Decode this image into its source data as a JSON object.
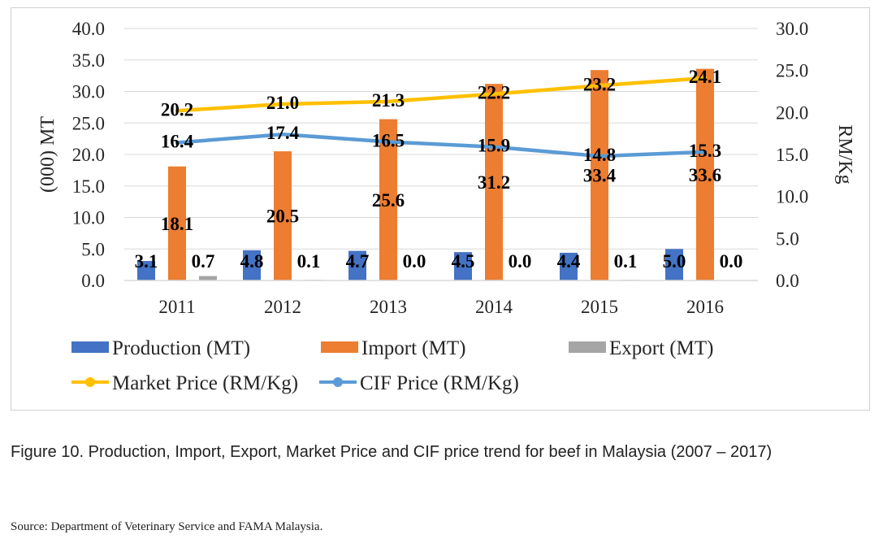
{
  "chart_data": {
    "type": "bar+line",
    "categories": [
      "2011",
      "2012",
      "2013",
      "2014",
      "2015",
      "2016"
    ],
    "bar_series": [
      {
        "name": "Production (MT)",
        "color": "#4472C4",
        "values": [
          3.1,
          4.8,
          4.7,
          4.5,
          4.4,
          5.0
        ]
      },
      {
        "name": "Import (MT)",
        "color": "#ED7D31",
        "values": [
          18.1,
          20.5,
          25.6,
          31.2,
          33.4,
          33.6
        ]
      },
      {
        "name": "Export (MT)",
        "color": "#A5A5A5",
        "values": [
          0.7,
          0.1,
          0.0,
          0.0,
          0.1,
          0.0
        ]
      }
    ],
    "line_series": [
      {
        "name": "Market Price (RM/Kg)",
        "color": "#FFC000",
        "axis": "right",
        "values": [
          20.2,
          21.0,
          21.3,
          22.2,
          23.2,
          24.1
        ]
      },
      {
        "name": "CIF Price (RM/Kg)",
        "color": "#5B9BD5",
        "axis": "right",
        "values": [
          16.4,
          17.4,
          16.5,
          15.9,
          14.8,
          15.3
        ]
      }
    ],
    "ylabel_left": "(000) MT",
    "ylabel_right": "RM/Kg",
    "ylim_left": [
      0,
      40
    ],
    "ylim_right": [
      0,
      30
    ],
    "yticks_left": [
      "0.0",
      "5.0",
      "10.0",
      "15.0",
      "20.0",
      "25.0",
      "30.0",
      "35.0",
      "40.0"
    ],
    "yticks_right": [
      "0.0",
      "5.0",
      "10.0",
      "15.0",
      "20.0",
      "25.0",
      "30.0"
    ],
    "grid": true,
    "legend_position": "bottom"
  },
  "caption": "Figure 10. Production, Import, Export, Market Price and CIF price trend for beef in Malaysia (2007 – 2017)",
  "source": "Source: Department of Veterinary Service and FAMA Malaysia."
}
